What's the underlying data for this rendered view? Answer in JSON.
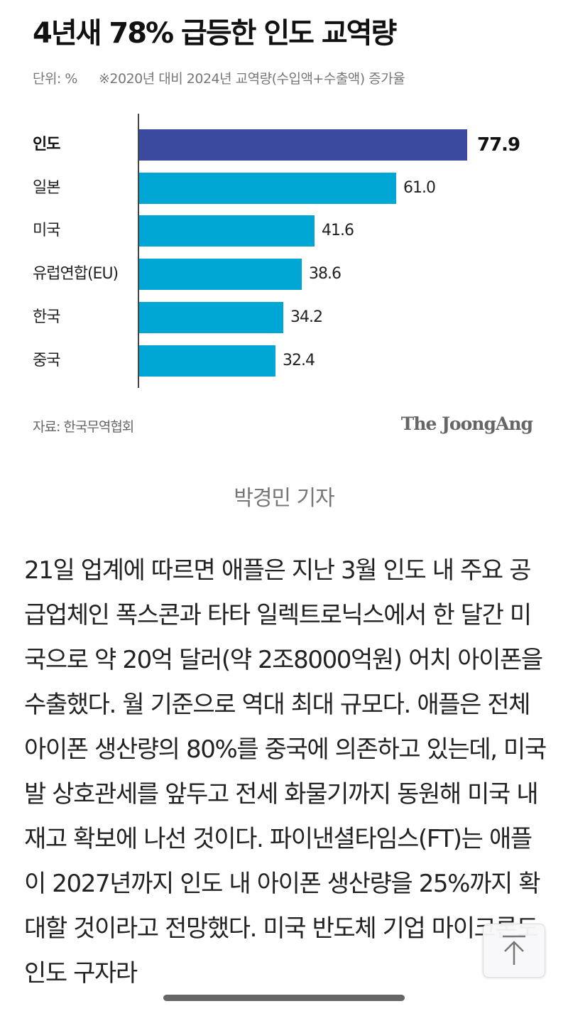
{
  "figure": {
    "title": "4년새 78% 급등한 인도 교역량",
    "unit": "단위: %",
    "note": "※2020년 대비 2024년 교역량(수입액+수출액) 증가율",
    "source": "자료: 한국무역협회",
    "logo": "The JoongAng",
    "colors": {
      "highlight": "#3B4A9E",
      "normal": "#00A6D4"
    }
  },
  "chart_data": {
    "type": "bar",
    "orientation": "horizontal",
    "title": "4년새 78% 급등한 인도 교역량",
    "subtitle": "※2020년 대비 2024년 교역량(수입액+수출액) 증가율",
    "unit": "%",
    "categories": [
      "인도",
      "일본",
      "미국",
      "유럽연합(EU)",
      "한국",
      "중국"
    ],
    "values": [
      77.9,
      61.0,
      41.6,
      38.6,
      34.2,
      32.4
    ],
    "value_labels": [
      "77.9",
      "61.0",
      "41.6",
      "38.6",
      "34.2",
      "32.4"
    ],
    "highlight": "인도",
    "xlabel": "",
    "ylabel": "",
    "grid": false,
    "legend": null,
    "source": "자료: 한국무역협회"
  },
  "byline": "박경민 기자",
  "article": {
    "paragraph": "21일 업계에 따르면 애플은 지난 3월 인도 내 주요 공급업체인 폭스콘과 타타 일렉트로닉스에서 한 달간 미국으로 약 20억 달러(약 2조8000억원) 어치 아이폰을 수출했다. 월 기준으로 역대 최대 규모다. 애플은 전체 아이폰 생산량의 80%를 중국에 의존하고 있는데, 미국발 상호관세를 앞두고 전세 화물기까지 동원해 미국 내 재고 확보에 나선 것이다. 파이낸셜타임스(FT)는 애플이 2027년까지 인도 내 아이폰 생산량을 25%까지 확대할 것이라고 전망했다. 미국 반도체 기업 마이크론도 인도 구자라"
  },
  "controls": {
    "scroll_top_icon": "arrow-up-to-top-icon"
  }
}
